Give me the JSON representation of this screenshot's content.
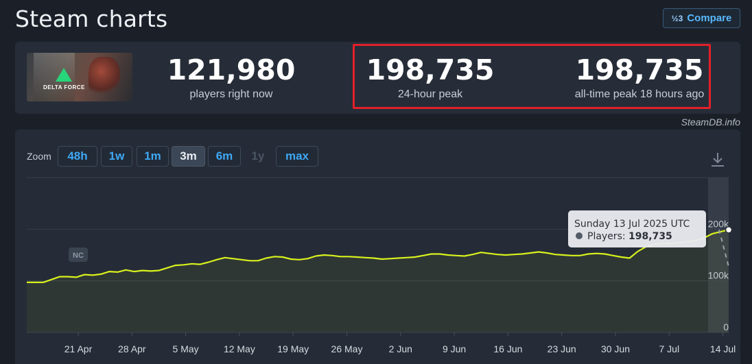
{
  "header": {
    "title": "Steam charts",
    "compare_icon": "½3",
    "compare_label": "Compare"
  },
  "game": {
    "banner_text": "DELTA FORCE"
  },
  "stats": {
    "now_value": "121,980",
    "now_label": "players right now",
    "peak24_value": "198,735",
    "peak24_label": "24-hour peak",
    "alltime_value": "198,735",
    "alltime_label": "all-time peak 18 hours ago"
  },
  "source_credit": "SteamDB.info",
  "zoom": {
    "label": "Zoom",
    "buttons": [
      {
        "label": "48h",
        "state": "normal"
      },
      {
        "label": "1w",
        "state": "normal"
      },
      {
        "label": "1m",
        "state": "normal"
      },
      {
        "label": "3m",
        "state": "active"
      },
      {
        "label": "6m",
        "state": "normal"
      },
      {
        "label": "1y",
        "state": "disabled"
      },
      {
        "label": "max",
        "state": "normal"
      }
    ]
  },
  "chart_data": {
    "type": "line",
    "xlabel": "",
    "ylabel": "",
    "x_ticks": [
      "21 Apr",
      "28 Apr",
      "5 May",
      "12 May",
      "19 May",
      "26 May",
      "2 Jun",
      "9 Jun",
      "16 Jun",
      "23 Jun",
      "30 Jun",
      "7 Jul",
      "14 Jul"
    ],
    "y_ticks": [
      "0",
      "100k",
      "200k"
    ],
    "ylim": [
      0,
      300000
    ],
    "line_color": "#d9f21c",
    "annotation": "NC",
    "series": [
      {
        "values": [
          [
            0,
            97000
          ],
          [
            2,
            97000
          ],
          [
            4,
            108000
          ],
          [
            5,
            108000
          ],
          [
            6,
            107000
          ],
          [
            7,
            112000
          ],
          [
            8,
            111000
          ],
          [
            9,
            113000
          ],
          [
            10,
            118000
          ],
          [
            11,
            117000
          ],
          [
            12,
            121000
          ],
          [
            13,
            118000
          ],
          [
            14,
            120000
          ],
          [
            15,
            119000
          ],
          [
            16,
            120000
          ],
          [
            17,
            125000
          ],
          [
            18,
            130000
          ],
          [
            19,
            131000
          ],
          [
            20,
            133000
          ],
          [
            21,
            132000
          ],
          [
            22,
            136000
          ],
          [
            23,
            141000
          ],
          [
            24,
            145000
          ],
          [
            25,
            143000
          ],
          [
            26,
            141000
          ],
          [
            27,
            139000
          ],
          [
            28,
            139000
          ],
          [
            29,
            144000
          ],
          [
            30,
            147000
          ],
          [
            31,
            146000
          ],
          [
            32,
            142000
          ],
          [
            33,
            141000
          ],
          [
            34,
            143000
          ],
          [
            35,
            148000
          ],
          [
            36,
            150000
          ],
          [
            37,
            149000
          ],
          [
            38,
            147000
          ],
          [
            39,
            147000
          ],
          [
            40,
            146000
          ],
          [
            41,
            145000
          ],
          [
            42,
            144000
          ],
          [
            43,
            142000
          ],
          [
            44,
            143000
          ],
          [
            45,
            144000
          ],
          [
            46,
            145000
          ],
          [
            47,
            146000
          ],
          [
            48,
            149000
          ],
          [
            49,
            152000
          ],
          [
            50,
            152000
          ],
          [
            51,
            150000
          ],
          [
            52,
            149000
          ],
          [
            53,
            148000
          ],
          [
            54,
            151000
          ],
          [
            55,
            155000
          ],
          [
            56,
            153000
          ],
          [
            57,
            151000
          ],
          [
            58,
            150000
          ],
          [
            59,
            151000
          ],
          [
            60,
            152000
          ],
          [
            61,
            154000
          ],
          [
            62,
            156000
          ],
          [
            63,
            154000
          ],
          [
            64,
            151000
          ],
          [
            65,
            150000
          ],
          [
            66,
            149000
          ],
          [
            67,
            149000
          ],
          [
            68,
            152000
          ],
          [
            69,
            153000
          ],
          [
            70,
            152000
          ],
          [
            71,
            149000
          ],
          [
            72,
            146000
          ],
          [
            73,
            144000
          ],
          [
            74,
            157000
          ],
          [
            75,
            166000
          ],
          [
            76,
            171000
          ],
          [
            77,
            173000
          ],
          [
            78,
            172000
          ],
          [
            79,
            174000
          ],
          [
            80,
            176000
          ],
          [
            81,
            178000
          ],
          [
            82,
            183000
          ],
          [
            83,
            191000
          ],
          [
            84,
            195000
          ],
          [
            85,
            198735
          ]
        ]
      }
    ],
    "x_domain": [
      0,
      85
    ],
    "tooltip": {
      "title": "Sunday 13 Jul 2025 UTC",
      "series_label": "Players:",
      "value": "198,735"
    },
    "grid": true
  }
}
